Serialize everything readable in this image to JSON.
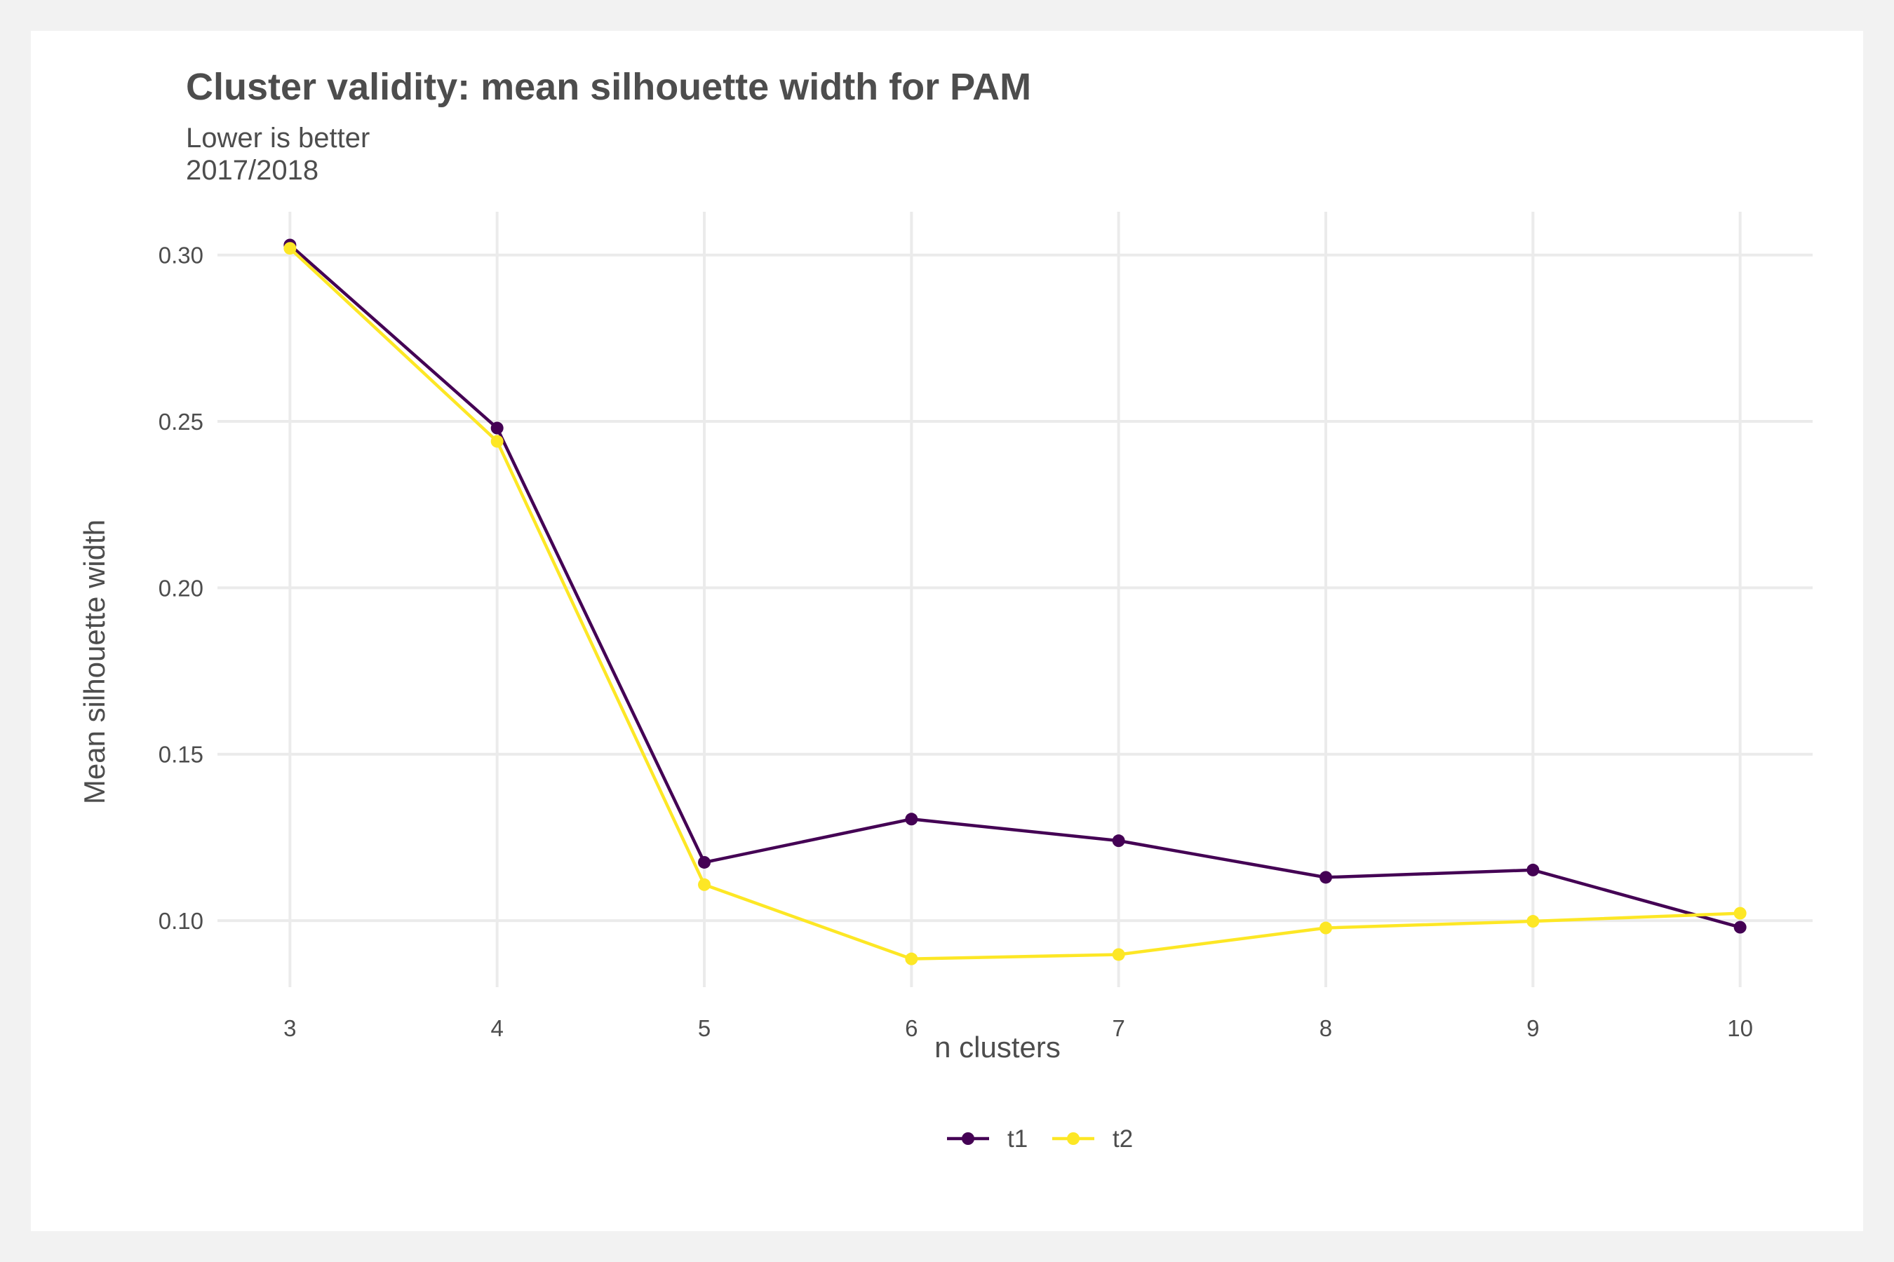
{
  "chart_data": {
    "type": "line",
    "title": "Cluster validity: mean silhouette width for PAM",
    "subtitle": [
      "Lower is better",
      "2017/2018"
    ],
    "xlabel": "n clusters",
    "ylabel": "Mean silhouette width",
    "x": [
      3,
      4,
      5,
      6,
      7,
      8,
      9,
      10
    ],
    "x_tick_labels": [
      "3",
      "4",
      "5",
      "6",
      "7",
      "8",
      "9",
      "10"
    ],
    "y_ticks": [
      0.1,
      0.15,
      0.2,
      0.25,
      0.3
    ],
    "y_tick_labels": [
      "0.10",
      "0.15",
      "0.20",
      "0.25",
      "0.30"
    ],
    "ylim": [
      0.08,
      0.313
    ],
    "xlim": [
      2.65,
      10.35
    ],
    "grid": true,
    "legend_position": "bottom",
    "series": [
      {
        "name": "t1",
        "color": "#440154",
        "values": [
          0.303,
          0.248,
          0.1175,
          0.1305,
          0.124,
          0.113,
          0.1152,
          0.098
        ]
      },
      {
        "name": "t2",
        "color": "#fde725",
        "values": [
          0.302,
          0.244,
          0.1108,
          0.0885,
          0.0898,
          0.0978,
          0.0998,
          0.1022
        ]
      }
    ]
  }
}
